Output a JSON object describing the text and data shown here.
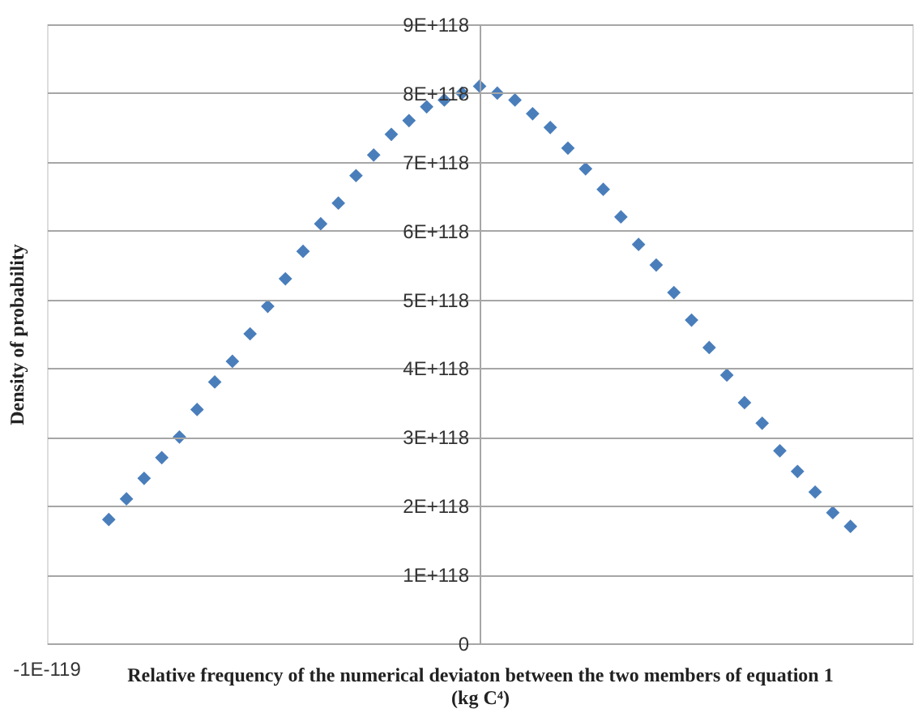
{
  "chart_data": {
    "type": "scatter",
    "xlabel": "Relative frequency of the numerical deviaton between the two members of equation 1\n(kg C⁴)",
    "ylabel": "Density of probability",
    "annotations": [
      "-1E-119"
    ],
    "categories": [
      null,
      null,
      null,
      null,
      null,
      null,
      null,
      null,
      null,
      null,
      null,
      null,
      null,
      null,
      null,
      null,
      null,
      null,
      null,
      null,
      null,
      null,
      null,
      null,
      null,
      null,
      null,
      null,
      null,
      null,
      null,
      null,
      null,
      null,
      null,
      null,
      null,
      null,
      null,
      null,
      null,
      null,
      null,
      null,
      null,
      null,
      null,
      null,
      null
    ],
    "series": [
      {
        "color": "#4a7ebb",
        "values": [
          null,
          null,
          null,
          1.8e+118,
          2.1e+118,
          2.4e+118,
          2.7e+118,
          3e+118,
          3.4e+118,
          3.8e+118,
          4.1e+118,
          4.5e+118,
          4.9e+118,
          5.3e+118,
          5.7e+118,
          6.1e+118,
          6.4e+118,
          6.8e+118,
          7.1e+118,
          7.4e+118,
          7.6e+118,
          7.8e+118,
          7.9e+118,
          8e+118,
          8.1e+118,
          8e+118,
          7.9e+118,
          7.7e+118,
          7.5e+118,
          7.2e+118,
          6.9e+118,
          6.6e+118,
          6.2e+118,
          5.8e+118,
          5.5e+118,
          5.1e+118,
          4.7e+118,
          4.3e+118,
          3.9e+118,
          3.5e+118,
          3.2e+118,
          2.8e+118,
          2.5e+118,
          2.2e+118,
          1.9e+118,
          1.7e+118,
          null,
          null,
          null
        ]
      }
    ],
    "ylim": [
      0,
      9e+118
    ],
    "yticks": [
      {
        "value": 0,
        "label": "0"
      },
      {
        "value": 1e+118,
        "label": "1E+118"
      },
      {
        "value": 2e+118,
        "label": "2E+118"
      },
      {
        "value": 3e+118,
        "label": "3E+118"
      },
      {
        "value": 4e+118,
        "label": "4E+118"
      },
      {
        "value": 5e+118,
        "label": "5E+118"
      },
      {
        "value": 6e+118,
        "label": "6E+118"
      },
      {
        "value": 7e+118,
        "label": "7E+118"
      },
      {
        "value": 8e+118,
        "label": "8E+118"
      },
      {
        "value": 9e+118,
        "label": "9E+118"
      }
    ],
    "grid": "y",
    "marker": "diamond",
    "tick_labels": "y"
  }
}
